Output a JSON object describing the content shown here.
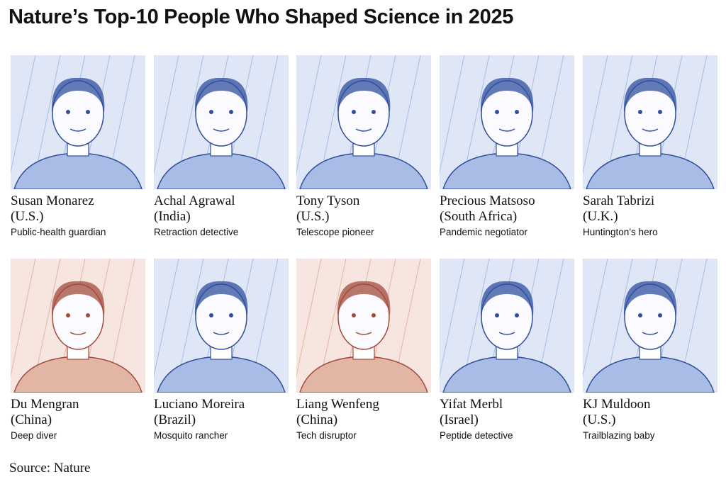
{
  "header": {
    "title": "Nature’s Top-10 People Who Shaped Science in 2025"
  },
  "people": [
    {
      "name": "Susan Monarez",
      "country": "(U.S.)",
      "role": "Public-health guardian"
    },
    {
      "name": "Achal Agrawal",
      "country": "(India)",
      "role": "Retraction detective"
    },
    {
      "name": "Tony Tyson",
      "country": "(U.S.)",
      "role": "Telescope pioneer"
    },
    {
      "name": "Precious Matsoso",
      "country": "(South Africa)",
      "role": "Pandemic negotiator"
    },
    {
      "name": "Sarah Tabrizi",
      "country": "(U.K.)",
      "role": "Huntington’s hero"
    },
    {
      "name": "Du Mengran",
      "country": "(China)",
      "role": "Deep diver"
    },
    {
      "name": "Luciano Moreira",
      "country": "(Brazil)",
      "role": "Mosquito rancher"
    },
    {
      "name": "Liang Wenfeng",
      "country": "(China)",
      "role": "Tech disruptor"
    },
    {
      "name": "Yifat Merbl",
      "country": "(Israel)",
      "role": "Peptide detective"
    },
    {
      "name": "KJ Muldoon",
      "country": "(U.S.)",
      "role": "Trailblazing baby"
    }
  ],
  "footer": {
    "source": "Source: Nature"
  }
}
